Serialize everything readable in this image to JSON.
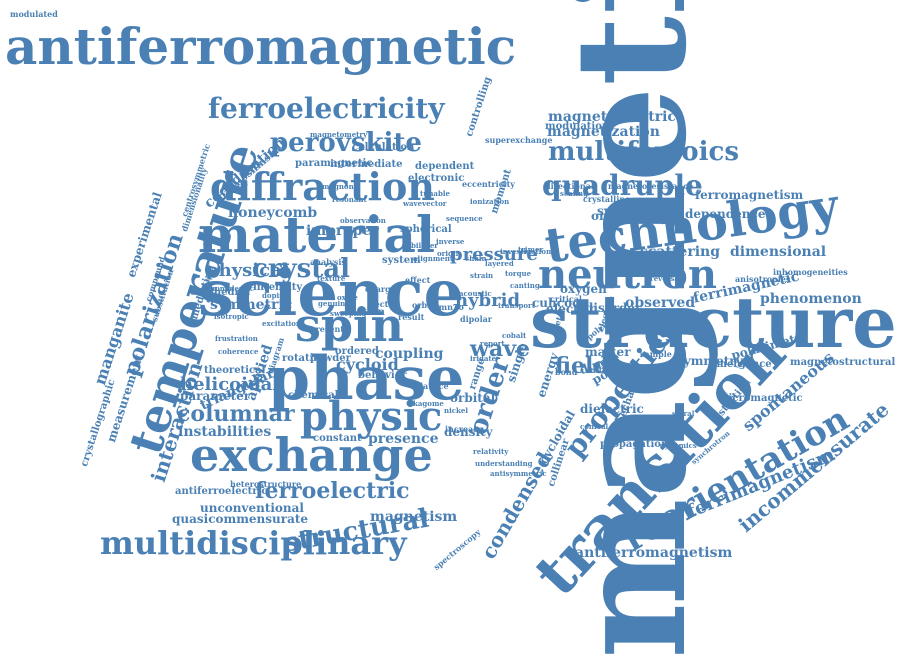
{
  "color": "#4a80b4",
  "words": [
    {
      "text": "magnetic"
    },
    {
      "text": "antiferromagnetic"
    },
    {
      "text": "structure"
    },
    {
      "text": "science"
    },
    {
      "text": "transition"
    },
    {
      "text": "material"
    },
    {
      "text": "technology"
    },
    {
      "text": "exchange"
    },
    {
      "text": "phase"
    },
    {
      "text": "temperature"
    },
    {
      "text": "neutron"
    },
    {
      "text": "physic"
    },
    {
      "text": "diffraction"
    },
    {
      "text": "spin"
    },
    {
      "text": "multidisciplinary"
    },
    {
      "text": "reorientation"
    },
    {
      "text": "multiferroics"
    },
    {
      "text": "ferroelectricity"
    },
    {
      "text": "properties"
    },
    {
      "text": "quadruple"
    },
    {
      "text": "perovskite"
    },
    {
      "text": "structural"
    },
    {
      "text": "columnar"
    },
    {
      "text": "order"
    },
    {
      "text": "polarization"
    },
    {
      "text": "incommensurate"
    },
    {
      "text": "ferroelectric"
    },
    {
      "text": "interaction"
    },
    {
      "text": "physical"
    },
    {
      "text": "crystal"
    },
    {
      "text": "antiferromagnetism"
    },
    {
      "text": "helicoidal"
    },
    {
      "text": "ferrimagnetism"
    },
    {
      "text": "magnetoelectric"
    },
    {
      "text": "magnetization"
    },
    {
      "text": "spontaneous"
    },
    {
      "text": "manganite"
    },
    {
      "text": "condensed"
    },
    {
      "text": "pressure"
    },
    {
      "text": "field"
    },
    {
      "text": "wave"
    },
    {
      "text": "instabilities"
    },
    {
      "text": "honeycomb"
    },
    {
      "text": "coordination"
    },
    {
      "text": "magnetism"
    },
    {
      "text": "improper"
    },
    {
      "text": "cycloid"
    },
    {
      "text": "triangular"
    },
    {
      "text": "applied"
    },
    {
      "text": "presence"
    },
    {
      "text": "scattering"
    },
    {
      "text": "ferrimagnetic"
    },
    {
      "text": "phenomenon"
    },
    {
      "text": "symmetric"
    },
    {
      "text": "symmetry"
    },
    {
      "text": "hybrid"
    },
    {
      "text": "density"
    },
    {
      "text": "observed"
    },
    {
      "text": "coupling"
    },
    {
      "text": "quasicommensurate"
    },
    {
      "text": "unconventional"
    },
    {
      "text": "dimensional"
    },
    {
      "text": "dependence"
    },
    {
      "text": "ferromagnetism"
    },
    {
      "text": "synthesis"
    },
    {
      "text": "parameter"
    },
    {
      "text": "ordering"
    },
    {
      "text": "magnetostructural"
    },
    {
      "text": "polarimetry"
    },
    {
      "text": "disorder"
    },
    {
      "text": "experimental"
    },
    {
      "text": "measurement"
    },
    {
      "text": "behavior"
    },
    {
      "text": "cation"
    },
    {
      "text": "chemical"
    },
    {
      "text": "constant"
    },
    {
      "text": "theoretical"
    },
    {
      "text": "rotation"
    },
    {
      "text": "ordered"
    },
    {
      "text": "calculation"
    },
    {
      "text": "electronic"
    },
    {
      "text": "intermediate"
    },
    {
      "text": "dependent"
    },
    {
      "text": "paramagnetic"
    },
    {
      "text": "controlling"
    },
    {
      "text": "modulation"
    },
    {
      "text": "superexchange"
    },
    {
      "text": "magnetometry"
    },
    {
      "text": "dzyaloshinskii"
    },
    {
      "text": "octahedral"
    },
    {
      "text": "mediating"
    },
    {
      "text": "crystallographic"
    },
    {
      "text": "antiferroelectric"
    },
    {
      "text": "orbital"
    },
    {
      "text": "matter"
    },
    {
      "text": "dipole"
    },
    {
      "text": "dielectric"
    },
    {
      "text": "polar"
    },
    {
      "text": "electric"
    },
    {
      "text": "cuhcoo"
    },
    {
      "text": "oxygen"
    },
    {
      "text": "inhomogeneities"
    },
    {
      "text": "anisotropies"
    },
    {
      "text": "distortion"
    },
    {
      "text": "mechanism"
    },
    {
      "text": "propagation"
    },
    {
      "text": "micromagnetic"
    },
    {
      "text": "emergence"
    },
    {
      "text": "domain"
    },
    {
      "text": "crystalline"
    },
    {
      "text": "directional"
    },
    {
      "text": "magnetoresistance"
    },
    {
      "text": "eccentricity"
    },
    {
      "text": "moment"
    },
    {
      "text": "spherical"
    },
    {
      "text": "system"
    },
    {
      "text": "intensity"
    },
    {
      "text": "homoleptic"
    },
    {
      "text": "isotropic"
    },
    {
      "text": "powder"
    },
    {
      "text": "present"
    },
    {
      "text": "diagram"
    },
    {
      "text": "energy"
    },
    {
      "text": "cycloidal"
    },
    {
      "text": "collinear"
    },
    {
      "text": "single"
    },
    {
      "text": "range"
    },
    {
      "text": "increase"
    },
    {
      "text": "lattice"
    },
    {
      "text": "result"
    },
    {
      "text": "effect"
    },
    {
      "text": "critical"
    },
    {
      "text": "bond"
    },
    {
      "text": "different"
    },
    {
      "text": "sample"
    },
    {
      "text": "pyrazine"
    },
    {
      "text": "metal"
    },
    {
      "text": "polymer"
    },
    {
      "text": "electron"
    },
    {
      "text": "heterostructure"
    },
    {
      "text": "compound"
    },
    {
      "text": "substitution"
    },
    {
      "text": "analysis"
    },
    {
      "text": "charge"
    },
    {
      "text": "vector"
    },
    {
      "text": "orbit"
    },
    {
      "text": "bimn7o"
    },
    {
      "text": "dipolar"
    },
    {
      "text": "spectroscopy"
    },
    {
      "text": "antisymmetric"
    },
    {
      "text": "relativity"
    },
    {
      "text": "understanding"
    },
    {
      "text": "synchrotron"
    },
    {
      "text": "centrosymmetric"
    },
    {
      "text": "dimensionality"
    },
    {
      "text": "wavevector"
    },
    {
      "text": "observation"
    },
    {
      "text": "magnon"
    },
    {
      "text": "resonant"
    },
    {
      "text": "ionization"
    },
    {
      "text": "texture"
    },
    {
      "text": "genuine"
    },
    {
      "text": "transport"
    },
    {
      "text": "acoustic"
    },
    {
      "text": "kagome"
    },
    {
      "text": "nickel"
    },
    {
      "text": "report"
    },
    {
      "text": "cobalt"
    },
    {
      "text": "iridate"
    },
    {
      "text": "conical"
    },
    {
      "text": "investigation"
    },
    {
      "text": "trimer"
    },
    {
      "text": "scaling"
    },
    {
      "text": "tunable"
    },
    {
      "text": "sequence"
    },
    {
      "text": "doping"
    },
    {
      "text": "frustration"
    },
    {
      "text": "coherence"
    },
    {
      "text": "excitation"
    },
    {
      "text": "oxide"
    },
    {
      "text": "sweeping"
    },
    {
      "text": "bilayer"
    },
    {
      "text": "alignment"
    },
    {
      "text": "inverse"
    },
    {
      "text": "origin"
    },
    {
      "text": "chain"
    },
    {
      "text": "layered"
    },
    {
      "text": "strain"
    },
    {
      "text": "torque"
    },
    {
      "text": "canting"
    },
    {
      "text": "state"
    },
    {
      "text": "helix"
    },
    {
      "text": "reversal"
    },
    {
      "text": "hysteresis"
    },
    {
      "text": "thermal"
    },
    {
      "text": "dynamics"
    },
    {
      "text": "spiral"
    },
    {
      "text": "modulated"
    }
  ]
}
